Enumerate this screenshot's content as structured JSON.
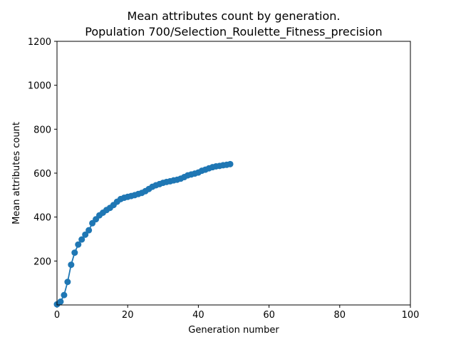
{
  "chart_data": {
    "type": "line",
    "title_line1": "Mean attributes count by generation.",
    "title_line2": "Population 700/Selection_Roulette_Fitness_precision",
    "xlabel": "Generation number",
    "ylabel": "Mean attributes count",
    "xlim": [
      0,
      100
    ],
    "ylim": [
      0,
      1200
    ],
    "xticks": [
      "0",
      "20",
      "40",
      "60",
      "80",
      "100"
    ],
    "yticks": [
      "200",
      "400",
      "600",
      "800",
      "1000",
      "1200"
    ],
    "grid": false,
    "legend": "none",
    "series": [
      {
        "color": "#1f77b4",
        "marker": "circle",
        "x": [
          0,
          1,
          2,
          3,
          4,
          5,
          6,
          7,
          8,
          9,
          10,
          11,
          12,
          13,
          14,
          15,
          16,
          17,
          18,
          19,
          20,
          21,
          22,
          23,
          24,
          25,
          26,
          27,
          28,
          29,
          30,
          31,
          32,
          33,
          34,
          35,
          36,
          37,
          38,
          39,
          40,
          41,
          42,
          43,
          44,
          45,
          46,
          47,
          48,
          49
        ],
        "values": [
          3,
          15,
          45,
          105,
          183,
          238,
          275,
          298,
          320,
          340,
          372,
          390,
          408,
          420,
          432,
          442,
          455,
          470,
          482,
          488,
          492,
          496,
          500,
          505,
          510,
          518,
          528,
          538,
          545,
          550,
          556,
          560,
          563,
          567,
          570,
          575,
          582,
          590,
          594,
          598,
          603,
          611,
          616,
          622,
          627,
          631,
          633,
          636,
          638,
          641
        ]
      }
    ]
  }
}
